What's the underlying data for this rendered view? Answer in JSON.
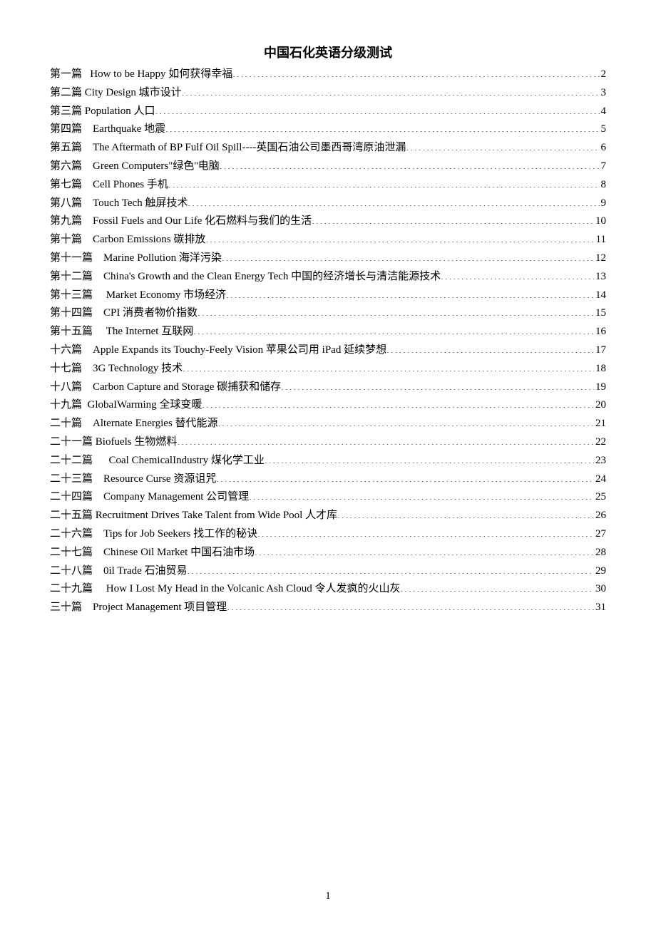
{
  "title": "中国石化英语分级测试",
  "page_number": "1",
  "text_color": "#000000",
  "background_color": "#ffffff",
  "font_size_title_pt": 18,
  "font_size_body_pt": 15,
  "toc": [
    {
      "prefix": "第一篇   ",
      "text": "How to be Happy   如何获得幸福 ",
      "page": "2"
    },
    {
      "prefix": "第二篇 ",
      "text": "City Design   城市设计 ",
      "page": "3"
    },
    {
      "prefix": "第三篇 ",
      "text": "Population   人口 ",
      "page": "4"
    },
    {
      "prefix": "第四篇    ",
      "text": "Earthquake   地震 ",
      "page": "5"
    },
    {
      "prefix": "第五篇    ",
      "text": "The Aftermath of BP Fulf Oil Spill----英国石油公司墨西哥湾原油泄漏 ",
      "page": "6"
    },
    {
      "prefix": "第六篇    ",
      "text": "Green Computers\"绿色''电脑 ",
      "page": "7"
    },
    {
      "prefix": "第七篇    ",
      "text": "Cell Phones 手机 ",
      "page": "8"
    },
    {
      "prefix": "第八篇    ",
      "text": "Touch Tech 触屏技术 ",
      "page": "9"
    },
    {
      "prefix": "第九篇    ",
      "text": "Fossil Fuels and Our Life 化石燃料与我们的生活",
      "page": "10"
    },
    {
      "prefix": "第十篇    ",
      "text": "Carbon Emissions 碳排放 ",
      "page": "11"
    },
    {
      "prefix": "第十一篇    ",
      "text": "Marine Pollution 海洋污染 ",
      "page": "12"
    },
    {
      "prefix": "第十二篇    ",
      "text": "China's Growth and the Clean Energy Tech 中国的经济增长与清洁能源技术 ",
      "page": "13"
    },
    {
      "prefix": "第十三篇     ",
      "text": "Market Economy 市场经济 ",
      "page": "14"
    },
    {
      "prefix": "第十四篇    ",
      "text": "CPI 消费者物价指数 ",
      "page": "15"
    },
    {
      "prefix": "第十五篇     ",
      "text": "The Internet 互联网 ",
      "page": "16"
    },
    {
      "prefix": "十六篇    ",
      "text": "Apple Expands its Touchy-Feely Vision 苹果公司用 iPad 延续梦想 ",
      "page": "17"
    },
    {
      "prefix": "十七篇    ",
      "text": "3G Technology 技术",
      "page": "18"
    },
    {
      "prefix": "十八篇    ",
      "text": "Carbon Capture and Storage 碳捕获和储存 ",
      "page": "19"
    },
    {
      "prefix": "十九篇  ",
      "text": "GlobaIWarming 全球变暖 ",
      "page": "20"
    },
    {
      "prefix": "二十篇    ",
      "text": "Alternate Energies 替代能源",
      "page": "21"
    },
    {
      "prefix": "二十一篇 ",
      "text": "Biofuels 生物燃料 ",
      "page": "22"
    },
    {
      "prefix": "二十二篇      ",
      "text": "Coal ChemicalIndustry 煤化学工业",
      "page": "23"
    },
    {
      "prefix": "二十三篇    ",
      "text": "Resource Curse 资源诅咒 ",
      "page": "24"
    },
    {
      "prefix": "二十四篇    ",
      "text": "Company Management 公司管理 ",
      "page": "25"
    },
    {
      "prefix": "二十五篇 ",
      "text": "Recruitment Drives Take Talent from Wide Pool 人才库 ",
      "page": "26"
    },
    {
      "prefix": "二十六篇    ",
      "text": "Tips for Job Seekers 找工作的秘诀",
      "page": "27"
    },
    {
      "prefix": "二十七篇    ",
      "text": "Chinese Oil Market 中国石油市场 ",
      "page": "28"
    },
    {
      "prefix": "二十八篇    ",
      "text": "0il Trade 石油贸易 ",
      "page": "29"
    },
    {
      "prefix": "二十九篇     ",
      "text": "How I Lost My Head in the Volcanic Ash Cloud 令人发疯的火山灰",
      "page": "30"
    },
    {
      "prefix": "三十篇    ",
      "text": "Project Management 项目管理 ",
      "page": "31"
    }
  ]
}
